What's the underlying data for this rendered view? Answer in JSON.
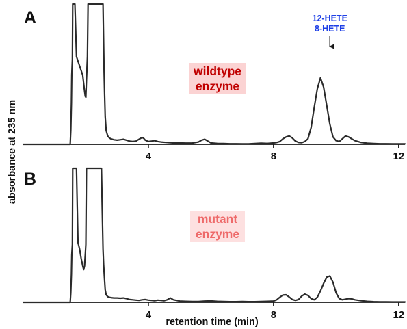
{
  "chart_data": [
    {
      "type": "line",
      "panel": "A",
      "title": "",
      "xlabel": "retention time (min)",
      "ylabel": "absorbance at 235 nm",
      "xlim": [
        0,
        12.2
      ],
      "ylim": [
        0,
        1
      ],
      "x_ticks": [
        4,
        8,
        12
      ],
      "x_tick_labels": [
        "4",
        "8",
        "12"
      ],
      "grid": false,
      "legend": "none",
      "label": {
        "lines": [
          "wildtype",
          "enzyme"
        ],
        "color": "#c00000",
        "background": "#fbd3d3"
      },
      "annotation": {
        "lines": [
          "12-HETE",
          "8-HETE"
        ],
        "color": "#1d3fe6",
        "x": 9.8
      },
      "series": [
        {
          "color": "#2a2a2a",
          "x": [
            0.0,
            1.5,
            1.52,
            1.54,
            1.55,
            1.57,
            1.58,
            1.6,
            1.65,
            1.7,
            1.8,
            1.9,
            1.95,
            1.98,
            2.0,
            2.02,
            2.05,
            2.07,
            2.1,
            2.2,
            2.4,
            2.55,
            2.58,
            2.6,
            2.62,
            2.65,
            2.7,
            2.75,
            2.8,
            2.9,
            3.0,
            3.1,
            3.2,
            3.3,
            3.4,
            3.5,
            3.6,
            3.7,
            3.8,
            3.85,
            3.9,
            4.0,
            4.1,
            4.2,
            4.3,
            4.4,
            4.6,
            4.8,
            5.0,
            5.2,
            5.4,
            5.6,
            5.7,
            5.8,
            5.9,
            6.0,
            6.2,
            6.4,
            6.6,
            6.8,
            7.0,
            7.2,
            7.4,
            7.6,
            7.8,
            8.0,
            8.1,
            8.2,
            8.3,
            8.4,
            8.5,
            8.6,
            8.7,
            8.8,
            8.9,
            9.0,
            9.1,
            9.2,
            9.3,
            9.4,
            9.5,
            9.6,
            9.7,
            9.8,
            9.9,
            10.0,
            10.1,
            10.2,
            10.3,
            10.4,
            10.5,
            10.6,
            10.7,
            10.8,
            11.0,
            11.2,
            11.4,
            11.6,
            11.8,
            12.0,
            12.2
          ],
          "y": [
            0.0,
            0.0,
            0.15,
            0.45,
            0.75,
            0.92,
            1.0,
            1.0,
            1.0,
            0.95,
            0.85,
            0.75,
            0.6,
            0.52,
            0.51,
            0.7,
            0.95,
            1.0,
            1.0,
            1.0,
            1.0,
            1.0,
            0.85,
            0.55,
            0.3,
            0.15,
            0.09,
            0.07,
            0.06,
            0.05,
            0.045,
            0.05,
            0.055,
            0.045,
            0.035,
            0.03,
            0.035,
            0.055,
            0.075,
            0.065,
            0.045,
            0.03,
            0.035,
            0.04,
            0.03,
            0.025,
            0.02,
            0.015,
            0.015,
            0.013,
            0.013,
            0.025,
            0.045,
            0.055,
            0.035,
            0.015,
            0.01,
            0.008,
            0.006,
            0.006,
            0.005,
            0.005,
            0.008,
            0.012,
            0.01,
            0.015,
            0.02,
            0.03,
            0.06,
            0.08,
            0.09,
            0.07,
            0.035,
            0.02,
            0.018,
            0.03,
            0.06,
            0.18,
            0.4,
            0.6,
            0.72,
            0.62,
            0.42,
            0.22,
            0.08,
            0.04,
            0.03,
            0.06,
            0.09,
            0.08,
            0.06,
            0.04,
            0.03,
            0.02,
            0.012,
            0.008,
            0.006,
            0.006,
            0.005,
            0.005,
            0.005
          ]
        }
      ]
    },
    {
      "type": "line",
      "panel": "B",
      "title": "",
      "xlabel": "retention time (min)",
      "ylabel": "absorbance at 235 nm",
      "xlim": [
        0,
        12.2
      ],
      "ylim": [
        0,
        1
      ],
      "x_ticks": [
        4,
        8,
        12
      ],
      "x_tick_labels": [
        "4",
        "8",
        "12"
      ],
      "grid": false,
      "legend": "none",
      "label": {
        "lines": [
          "mutant",
          "enzyme"
        ],
        "color": "#ee6a6a",
        "background": "#fde0e0"
      },
      "series": [
        {
          "color": "#2a2a2a",
          "x": [
            0.0,
            1.5,
            1.52,
            1.54,
            1.55,
            1.57,
            1.58,
            1.6,
            1.65,
            1.7,
            1.75,
            1.8,
            1.85,
            1.9,
            1.93,
            1.96,
            1.98,
            2.0,
            2.02,
            2.05,
            2.1,
            2.2,
            2.4,
            2.5,
            2.55,
            2.57,
            2.6,
            2.62,
            2.65,
            2.7,
            2.75,
            2.8,
            2.9,
            3.0,
            3.1,
            3.2,
            3.3,
            3.4,
            3.5,
            3.6,
            3.7,
            3.8,
            3.9,
            4.0,
            4.1,
            4.2,
            4.3,
            4.4,
            4.5,
            4.6,
            4.7,
            4.8,
            5.0,
            5.2,
            5.4,
            5.6,
            5.8,
            6.0,
            6.2,
            6.4,
            6.6,
            6.8,
            7.0,
            7.2,
            7.4,
            7.6,
            7.8,
            8.0,
            8.1,
            8.2,
            8.3,
            8.4,
            8.5,
            8.6,
            8.7,
            8.8,
            8.9,
            9.0,
            9.1,
            9.2,
            9.3,
            9.4,
            9.5,
            9.6,
            9.7,
            9.8,
            9.9,
            10.0,
            10.1,
            10.2,
            10.3,
            10.4,
            10.5,
            10.6,
            10.8,
            11.0,
            11.2,
            11.4,
            11.6,
            11.8,
            12.0,
            12.2
          ],
          "y": [
            0.0,
            0.0,
            0.15,
            0.45,
            0.75,
            0.92,
            1.0,
            1.0,
            1.0,
            1.0,
            0.95,
            0.85,
            0.7,
            0.58,
            0.52,
            0.58,
            0.75,
            0.92,
            1.0,
            1.0,
            1.0,
            1.0,
            1.0,
            1.0,
            0.85,
            0.6,
            0.35,
            0.2,
            0.12,
            0.09,
            0.08,
            0.075,
            0.07,
            0.07,
            0.065,
            0.07,
            0.06,
            0.045,
            0.04,
            0.035,
            0.03,
            0.04,
            0.045,
            0.035,
            0.03,
            0.025,
            0.035,
            0.03,
            0.025,
            0.04,
            0.07,
            0.04,
            0.02,
            0.015,
            0.012,
            0.012,
            0.02,
            0.022,
            0.015,
            0.012,
            0.01,
            0.01,
            0.012,
            0.01,
            0.01,
            0.012,
            0.015,
            0.02,
            0.04,
            0.08,
            0.115,
            0.12,
            0.085,
            0.045,
            0.03,
            0.045,
            0.1,
            0.13,
            0.11,
            0.06,
            0.04,
            0.08,
            0.18,
            0.3,
            0.4,
            0.42,
            0.32,
            0.15,
            0.06,
            0.04,
            0.05,
            0.06,
            0.055,
            0.04,
            0.025,
            0.015,
            0.01,
            0.008,
            0.006,
            0.005,
            0.005,
            0.005
          ]
        }
      ]
    }
  ]
}
